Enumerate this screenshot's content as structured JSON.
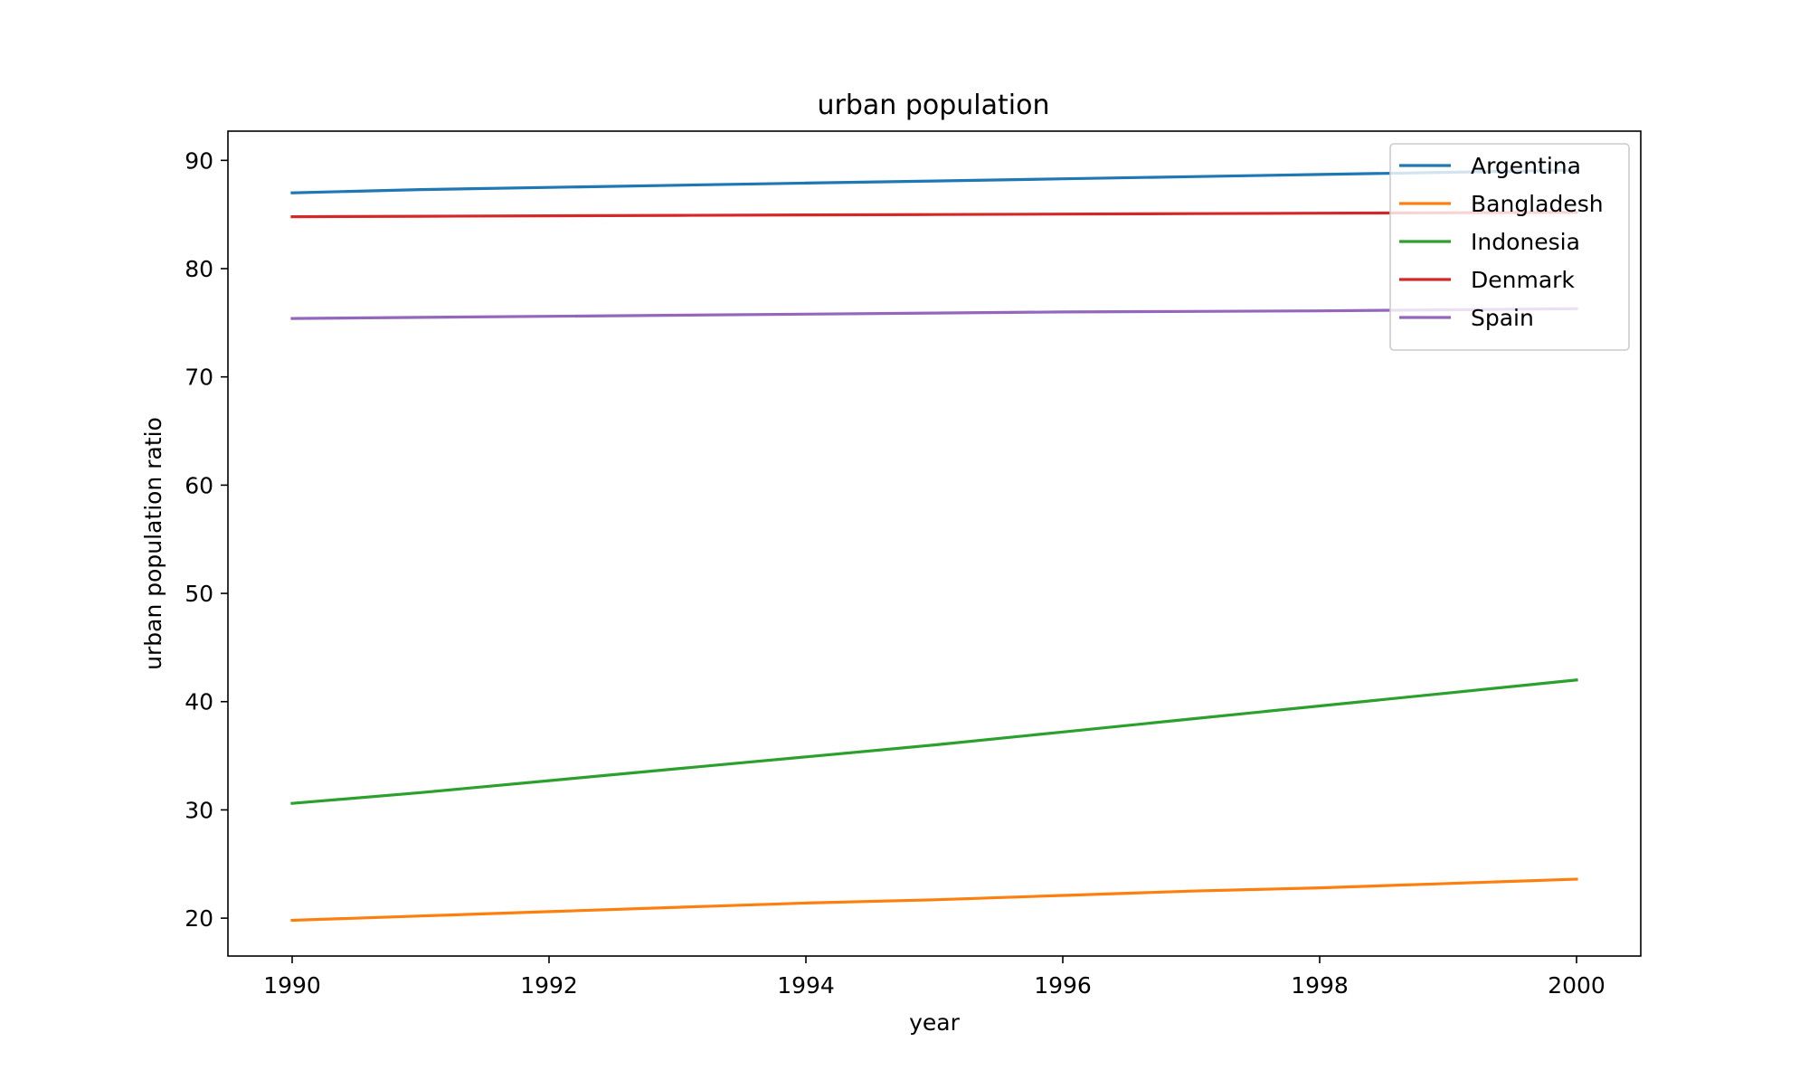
{
  "chart_data": {
    "type": "line",
    "title": "urban population",
    "xlabel": "year",
    "ylabel": "urban population ratio",
    "x": [
      1990,
      1991,
      1992,
      1993,
      1994,
      1995,
      1996,
      1997,
      1998,
      1999,
      2000
    ],
    "xlim": [
      1989.5,
      2000.5
    ],
    "ylim": [
      16.5,
      92.7
    ],
    "xticks": [
      1990,
      1992,
      1994,
      1996,
      1998,
      2000
    ],
    "yticks": [
      20,
      30,
      40,
      50,
      60,
      70,
      80,
      90
    ],
    "grid": false,
    "legend_position": "top-right",
    "series": [
      {
        "name": "Argentina",
        "color": "#1f77b4",
        "values": [
          87.0,
          87.3,
          87.5,
          87.7,
          87.9,
          88.1,
          88.3,
          88.5,
          88.7,
          88.9,
          89.1
        ]
      },
      {
        "name": "Bangladesh",
        "color": "#ff7f0e",
        "values": [
          19.8,
          20.2,
          20.6,
          21.0,
          21.4,
          21.7,
          22.1,
          22.5,
          22.8,
          23.2,
          23.6
        ]
      },
      {
        "name": "Indonesia",
        "color": "#2ca02c",
        "values": [
          30.6,
          31.6,
          32.7,
          33.8,
          34.9,
          36.0,
          37.2,
          38.4,
          39.6,
          40.8,
          42.0
        ]
      },
      {
        "name": "Denmark",
        "color": "#d62728",
        "values": [
          84.8,
          84.84,
          84.88,
          84.92,
          84.96,
          85.0,
          85.04,
          85.08,
          85.12,
          85.16,
          85.2
        ]
      },
      {
        "name": "Spain",
        "color": "#9467bd",
        "values": [
          75.4,
          75.5,
          75.6,
          75.7,
          75.8,
          75.9,
          76.0,
          76.05,
          76.1,
          76.2,
          76.3
        ]
      }
    ]
  }
}
